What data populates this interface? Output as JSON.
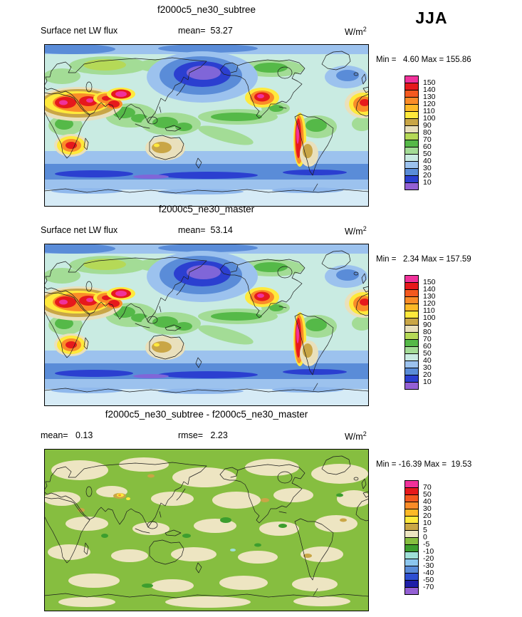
{
  "season_label": "JJA",
  "units_base": "W/m",
  "units_exp": "2",
  "chart_data": [
    {
      "type": "heatmap",
      "panel": "top",
      "title": "f2000c5_ne30_subtree",
      "variable": "Surface net LW flux",
      "season": "JJA",
      "units": "W/m^2",
      "mean": 53.27,
      "min": 4.6,
      "max": 155.86,
      "header_left": "Surface net LW flux",
      "header_mid": "mean=  53.27",
      "minmax_text": "Min =   4.60 Max = 155.86",
      "colorbar": {
        "levels": [
          150,
          140,
          130,
          120,
          110,
          100,
          90,
          80,
          70,
          60,
          50,
          40,
          30,
          20,
          10
        ],
        "tick_labels": [
          "150",
          "140",
          "130",
          "120",
          "110",
          "100",
          "90",
          "80",
          "70",
          "60",
          "50",
          "40",
          "30",
          "20",
          "10"
        ],
        "colors_top_to_bottom": [
          "#F0329B",
          "#E6191C",
          "#F4591F",
          "#FA8C28",
          "#FDB927",
          "#FFE93C",
          "#C9A646",
          "#E9E0BC",
          "#B5D957",
          "#55B948",
          "#A3DC96",
          "#C9EBE2",
          "#9CC2EE",
          "#5A8CD8",
          "#2B3FD0",
          "#9460D4"
        ]
      }
    },
    {
      "type": "heatmap",
      "panel": "middle",
      "title": "f2000c5_ne30_master",
      "variable": "Surface net LW flux",
      "season": "JJA",
      "units": "W/m^2",
      "mean": 53.14,
      "min": 2.34,
      "max": 157.59,
      "header_left": "Surface net LW flux",
      "header_mid": "mean=  53.14",
      "minmax_text": "Min =   2.34 Max = 157.59",
      "colorbar": {
        "levels": [
          150,
          140,
          130,
          120,
          110,
          100,
          90,
          80,
          70,
          60,
          50,
          40,
          30,
          20,
          10
        ],
        "tick_labels": [
          "150",
          "140",
          "130",
          "120",
          "110",
          "100",
          "90",
          "80",
          "70",
          "60",
          "50",
          "40",
          "30",
          "20",
          "10"
        ],
        "colors_top_to_bottom": [
          "#F0329B",
          "#E6191C",
          "#F4591F",
          "#FA8C28",
          "#FDB927",
          "#FFE93C",
          "#C9A646",
          "#E9E0BC",
          "#B5D957",
          "#55B948",
          "#A3DC96",
          "#C9EBE2",
          "#9CC2EE",
          "#5A8CD8",
          "#2B3FD0",
          "#9460D4"
        ]
      }
    },
    {
      "type": "heatmap",
      "panel": "difference",
      "title": "f2000c5_ne30_subtree - f2000c5_ne30_master",
      "season": "JJA",
      "units": "W/m^2",
      "mean": 0.13,
      "rmse": 2.23,
      "min": -16.39,
      "max": 19.53,
      "header_left": "mean=   0.13",
      "header_mid": "rmse=   2.23",
      "minmax_text": "Min = -16.39 Max =  19.53",
      "colorbar": {
        "levels": [
          70,
          50,
          40,
          30,
          20,
          10,
          5,
          0,
          -5,
          -10,
          -20,
          -30,
          -40,
          -50,
          -70
        ],
        "tick_labels": [
          "70",
          "50",
          "40",
          "30",
          "20",
          "10",
          "5",
          "0",
          "-5",
          "-10",
          "-20",
          "-30",
          "-40",
          "-50",
          "-70"
        ],
        "colors_top_to_bottom": [
          "#F0329B",
          "#E6191C",
          "#F4591F",
          "#FA8C28",
          "#FDB927",
          "#FFE93C",
          "#C9A646",
          "#EDE5C2",
          "#86BE40",
          "#3C9E2E",
          "#9FE0D8",
          "#8CC6EE",
          "#5A8CD8",
          "#2E4FD2",
          "#1F1FA8",
          "#9460D4"
        ]
      }
    }
  ]
}
